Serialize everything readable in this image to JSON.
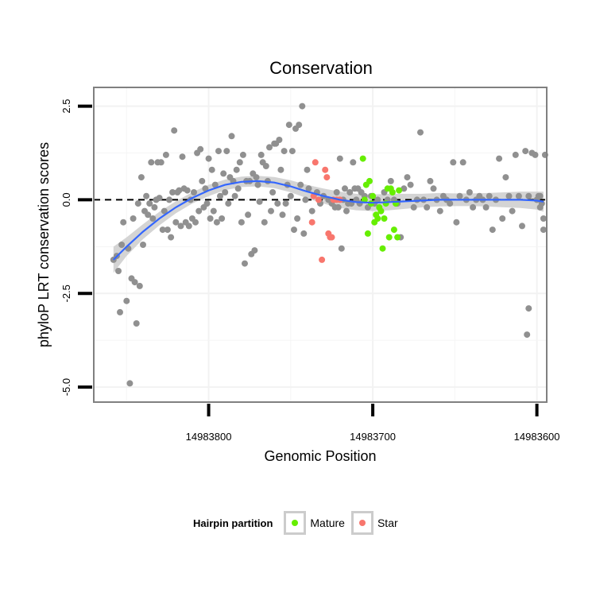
{
  "chart_data": {
    "type": "scatter",
    "title": "Conservation",
    "xlabel": "Genomic Position",
    "ylabel": "phyloP LRT conservation scores",
    "x_reversed": true,
    "xlim": [
      14983870,
      14983594
    ],
    "ylim": [
      -5.4,
      3.0
    ],
    "x_ticks": [
      14983800,
      14983700,
      14983600
    ],
    "x_tick_labels": [
      "14983800",
      "14983700",
      "14983600"
    ],
    "y_ticks": [
      2.5,
      0.0,
      -2.5,
      -5.0
    ],
    "y_tick_labels": [
      "2.5",
      "0.0",
      "-2.5",
      "-5.0"
    ],
    "grid": true,
    "reference_line": {
      "y": 0,
      "style": "dashed",
      "color": "#000000"
    },
    "legend": {
      "title": "Hairpin partition",
      "position": "bottom",
      "entries": [
        {
          "name": "Mature",
          "color": "#66ee00"
        },
        {
          "name": "Star",
          "color": "#f8766d"
        }
      ]
    },
    "series": [
      {
        "color": "#909090",
        "points": [
          [
            14983858,
            -1.6
          ],
          [
            14983856,
            -1.5
          ],
          [
            14983855,
            -1.9
          ],
          [
            14983854,
            -3.0
          ],
          [
            14983853,
            -1.2
          ],
          [
            14983852,
            -0.6
          ],
          [
            14983850,
            -2.7
          ],
          [
            14983849,
            -1.3
          ],
          [
            14983848,
            -4.9
          ],
          [
            14983847,
            -2.1
          ],
          [
            14983846,
            -0.5
          ],
          [
            14983845,
            -2.2
          ],
          [
            14983844,
            -3.3
          ],
          [
            14983843,
            -0.1
          ],
          [
            14983842,
            -2.3
          ],
          [
            14983841,
            0.6
          ],
          [
            14983840,
            -1.2
          ],
          [
            14983839,
            -0.3
          ],
          [
            14983838,
            0.1
          ],
          [
            14983837,
            -0.4
          ],
          [
            14983836,
            -0.1
          ],
          [
            14983835,
            1.0
          ],
          [
            14983834,
            -0.5
          ],
          [
            14983833,
            -0.2
          ],
          [
            14983832,
            0.0
          ],
          [
            14983831,
            1.0
          ],
          [
            14983830,
            0.05
          ],
          [
            14983829,
            1.0
          ],
          [
            14983828,
            -0.8
          ],
          [
            14983827,
            -0.3
          ],
          [
            14983826,
            1.2
          ],
          [
            14983825,
            -0.8
          ],
          [
            14983824,
            0.0
          ],
          [
            14983823,
            -1.0
          ],
          [
            14983822,
            0.2
          ],
          [
            14983821,
            1.85
          ],
          [
            14983820,
            -0.6
          ],
          [
            14983819,
            0.2
          ],
          [
            14983818,
            0.25
          ],
          [
            14983817,
            -0.7
          ],
          [
            14983816,
            1.15
          ],
          [
            14983815,
            0.3
          ],
          [
            14983814,
            -0.6
          ],
          [
            14983813,
            0.25
          ],
          [
            14983812,
            -0.7
          ],
          [
            14983811,
            0.0
          ],
          [
            14983810,
            -0.5
          ],
          [
            14983809,
            0.2
          ],
          [
            14983808,
            -0.6
          ],
          [
            14983807,
            1.25
          ],
          [
            14983806,
            -0.3
          ],
          [
            14983805,
            1.35
          ],
          [
            14983804,
            0.5
          ],
          [
            14983803,
            -0.2
          ],
          [
            14983802,
            0.3
          ],
          [
            14983801,
            -0.1
          ],
          [
            14983800,
            1.1
          ],
          [
            14983799,
            -0.5
          ],
          [
            14983798,
            0.8
          ],
          [
            14983797,
            -0.3
          ],
          [
            14983796,
            0.4
          ],
          [
            14983795,
            -0.6
          ],
          [
            14983794,
            1.3
          ],
          [
            14983793,
            0.1
          ],
          [
            14983792,
            -0.5
          ],
          [
            14983791,
            0.7
          ],
          [
            14983790,
            0.2
          ],
          [
            14983789,
            1.3
          ],
          [
            14983788,
            -0.1
          ],
          [
            14983787,
            0.6
          ],
          [
            14983786,
            1.7
          ],
          [
            14983785,
            0.5
          ],
          [
            14983784,
            0.1
          ],
          [
            14983783,
            0.8
          ],
          [
            14983782,
            0.3
          ],
          [
            14983781,
            1.0
          ],
          [
            14983780,
            -0.6
          ],
          [
            14983779,
            1.2
          ],
          [
            14983778,
            -1.7
          ],
          [
            14983777,
            0.5
          ],
          [
            14983776,
            -0.4
          ],
          [
            14983775,
            0.5
          ],
          [
            14983774,
            -1.45
          ],
          [
            14983773,
            0.7
          ],
          [
            14983772,
            -1.35
          ],
          [
            14983771,
            0.6
          ],
          [
            14983770,
            0.4
          ],
          [
            14983769,
            -0.05
          ],
          [
            14983768,
            1.2
          ],
          [
            14983767,
            1.0
          ],
          [
            14983766,
            -0.6
          ],
          [
            14983765,
            0.9
          ],
          [
            14983764,
            0.5
          ],
          [
            14983763,
            1.4
          ],
          [
            14983762,
            -0.3
          ],
          [
            14983761,
            0.2
          ],
          [
            14983760,
            1.5
          ],
          [
            14983759,
            1.5
          ],
          [
            14983758,
            -0.1
          ],
          [
            14983757,
            1.6
          ],
          [
            14983756,
            0.8
          ],
          [
            14983755,
            -0.4
          ],
          [
            14983754,
            1.3
          ],
          [
            14983753,
            -0.1
          ],
          [
            14983752,
            0.4
          ],
          [
            14983751,
            2.0
          ],
          [
            14983750,
            0.1
          ],
          [
            14983749,
            1.3
          ],
          [
            14983748,
            -0.8
          ],
          [
            14983747,
            1.9
          ],
          [
            14983746,
            -0.5
          ],
          [
            14983745,
            2.0
          ],
          [
            14983744,
            0.4
          ],
          [
            14983743,
            2.5
          ],
          [
            14983742,
            -0.9
          ],
          [
            14983741,
            0.0
          ],
          [
            14983740,
            0.8
          ],
          [
            14983739,
            0.3
          ],
          [
            14983737,
            -0.3
          ],
          [
            14983734,
            0.2
          ],
          [
            14983732,
            -0.1
          ],
          [
            14983730,
            0.1
          ],
          [
            14983727,
            0.0
          ],
          [
            14983725,
            -0.1
          ],
          [
            14983723,
            -0.2
          ],
          [
            14983722,
            0.2
          ],
          [
            14983721,
            -0.2
          ],
          [
            14983720,
            1.1
          ],
          [
            14983719,
            -1.3
          ],
          [
            14983718,
            0.0
          ],
          [
            14983717,
            0.3
          ],
          [
            14983716,
            -0.3
          ],
          [
            14983715,
            -0.1
          ],
          [
            14983714,
            0.2
          ],
          [
            14983713,
            -0.1
          ],
          [
            14983712,
            1.0
          ],
          [
            14983711,
            0.3
          ],
          [
            14983710,
            0.0
          ],
          [
            14983709,
            0.3
          ],
          [
            14983708,
            -0.1
          ],
          [
            14983707,
            0.2
          ],
          [
            14983705,
            0.1
          ],
          [
            14983703,
            -0.2
          ],
          [
            14983701,
            0.1
          ],
          [
            14983699,
            -0.1
          ],
          [
            14983697,
            0.0
          ],
          [
            14983695,
            -0.3
          ],
          [
            14983693,
            0.2
          ],
          [
            14983691,
            0.0
          ],
          [
            14983689,
            0.5
          ],
          [
            14983687,
            0.0
          ],
          [
            14983685,
            -0.1
          ],
          [
            14983683,
            -1.0
          ],
          [
            14983681,
            0.3
          ],
          [
            14983679,
            0.6
          ],
          [
            14983677,
            0.4
          ],
          [
            14983675,
            -0.2
          ],
          [
            14983673,
            0.0
          ],
          [
            14983671,
            1.8
          ],
          [
            14983669,
            0.0
          ],
          [
            14983667,
            -0.2
          ],
          [
            14983665,
            0.5
          ],
          [
            14983663,
            0.3
          ],
          [
            14983661,
            0.0
          ],
          [
            14983659,
            -0.3
          ],
          [
            14983657,
            0.1
          ],
          [
            14983655,
            0.0
          ],
          [
            14983653,
            -0.1
          ],
          [
            14983651,
            1.0
          ],
          [
            14983649,
            -0.6
          ],
          [
            14983647,
            0.1
          ],
          [
            14983645,
            1.0
          ],
          [
            14983643,
            0.0
          ],
          [
            14983641,
            0.2
          ],
          [
            14983639,
            -0.2
          ],
          [
            14983637,
            0.0
          ],
          [
            14983635,
            0.1
          ],
          [
            14983633,
            0.0
          ],
          [
            14983631,
            -0.2
          ],
          [
            14983629,
            0.1
          ],
          [
            14983627,
            -0.8
          ],
          [
            14983625,
            0.0
          ],
          [
            14983623,
            1.1
          ],
          [
            14983621,
            -0.5
          ],
          [
            14983619,
            0.6
          ],
          [
            14983617,
            0.1
          ],
          [
            14983615,
            -0.3
          ],
          [
            14983613,
            1.2
          ],
          [
            14983611,
            0.1
          ],
          [
            14983609,
            -0.7
          ],
          [
            14983607,
            1.3
          ],
          [
            14983605,
            0.1
          ],
          [
            14983603,
            1.25
          ],
          [
            14983601,
            1.2
          ],
          [
            14983600,
            0.0
          ],
          [
            14983599,
            0.1
          ],
          [
            14983598,
            -0.2
          ],
          [
            14983597,
            -0.1
          ],
          [
            14983596,
            -0.5
          ],
          [
            14983595,
            1.2
          ],
          [
            14983605,
            -2.9
          ],
          [
            14983606,
            -3.6
          ],
          [
            14983596,
            -0.8
          ],
          [
            14983598,
            0.1
          ]
        ]
      },
      {
        "name": "Star",
        "color": "#f8766d",
        "points": [
          [
            14983737,
            -0.6
          ],
          [
            14983736,
            0.1
          ],
          [
            14983735,
            1.0
          ],
          [
            14983733,
            0.0
          ],
          [
            14983731,
            -1.6
          ],
          [
            14983729,
            0.8
          ],
          [
            14983728,
            0.6
          ],
          [
            14983727,
            -0.9
          ],
          [
            14983726,
            -1.0
          ],
          [
            14983725,
            -1.0
          ],
          [
            14983724,
            0.0
          ],
          [
            14983722,
            0.0
          ],
          [
            14983720,
            0.0
          ]
        ]
      },
      {
        "name": "Mature",
        "color": "#66ee00",
        "points": [
          [
            14983706,
            1.1
          ],
          [
            14983705,
            0.0
          ],
          [
            14983704,
            0.4
          ],
          [
            14983703,
            -0.9
          ],
          [
            14983702,
            0.5
          ],
          [
            14983701,
            -0.1
          ],
          [
            14983700,
            0.1
          ],
          [
            14983699,
            -0.6
          ],
          [
            14983698,
            -0.4
          ],
          [
            14983697,
            -0.5
          ],
          [
            14983696,
            -0.2
          ],
          [
            14983695,
            -0.3
          ],
          [
            14983694,
            -1.3
          ],
          [
            14983693,
            -0.5
          ],
          [
            14983692,
            -0.1
          ],
          [
            14983691,
            0.3
          ],
          [
            14983690,
            -1.0
          ],
          [
            14983689,
            0.3
          ],
          [
            14983688,
            0.2
          ],
          [
            14983687,
            -0.8
          ],
          [
            14983686,
            -0.1
          ],
          [
            14983685,
            -1.0
          ],
          [
            14983684,
            0.25
          ]
        ]
      }
    ],
    "smooth_line": {
      "color": "#3366ff",
      "band_color": "#cccccc",
      "x": [
        14983858,
        14983850,
        14983840,
        14983830,
        14983820,
        14983810,
        14983800,
        14983790,
        14983780,
        14983770,
        14983760,
        14983750,
        14983740,
        14983730,
        14983720,
        14983710,
        14983700,
        14983690,
        14983680,
        14983670,
        14983660,
        14983650,
        14983640,
        14983630,
        14983620,
        14983610,
        14983600,
        14983596
      ],
      "y": [
        -1.6,
        -1.25,
        -0.85,
        -0.5,
        -0.2,
        0.05,
        0.25,
        0.4,
        0.48,
        0.5,
        0.46,
        0.36,
        0.22,
        0.1,
        0.0,
        -0.06,
        -0.08,
        -0.06,
        -0.04,
        -0.02,
        0.0,
        0.0,
        0.0,
        0.0,
        0.0,
        0.0,
        -0.02,
        -0.05
      ],
      "lower": [
        -1.95,
        -1.5,
        -1.05,
        -0.68,
        -0.36,
        -0.1,
        0.1,
        0.26,
        0.34,
        0.36,
        0.31,
        0.2,
        0.04,
        -0.1,
        -0.22,
        -0.28,
        -0.3,
        -0.28,
        -0.24,
        -0.2,
        -0.18,
        -0.17,
        -0.17,
        -0.18,
        -0.2,
        -0.22,
        -0.26,
        -0.32
      ],
      "upper": [
        -1.25,
        -1.0,
        -0.65,
        -0.32,
        -0.04,
        0.2,
        0.4,
        0.54,
        0.62,
        0.64,
        0.61,
        0.52,
        0.4,
        0.3,
        0.22,
        0.16,
        0.14,
        0.16,
        0.16,
        0.16,
        0.18,
        0.17,
        0.17,
        0.18,
        0.2,
        0.22,
        0.22,
        0.22
      ]
    }
  }
}
